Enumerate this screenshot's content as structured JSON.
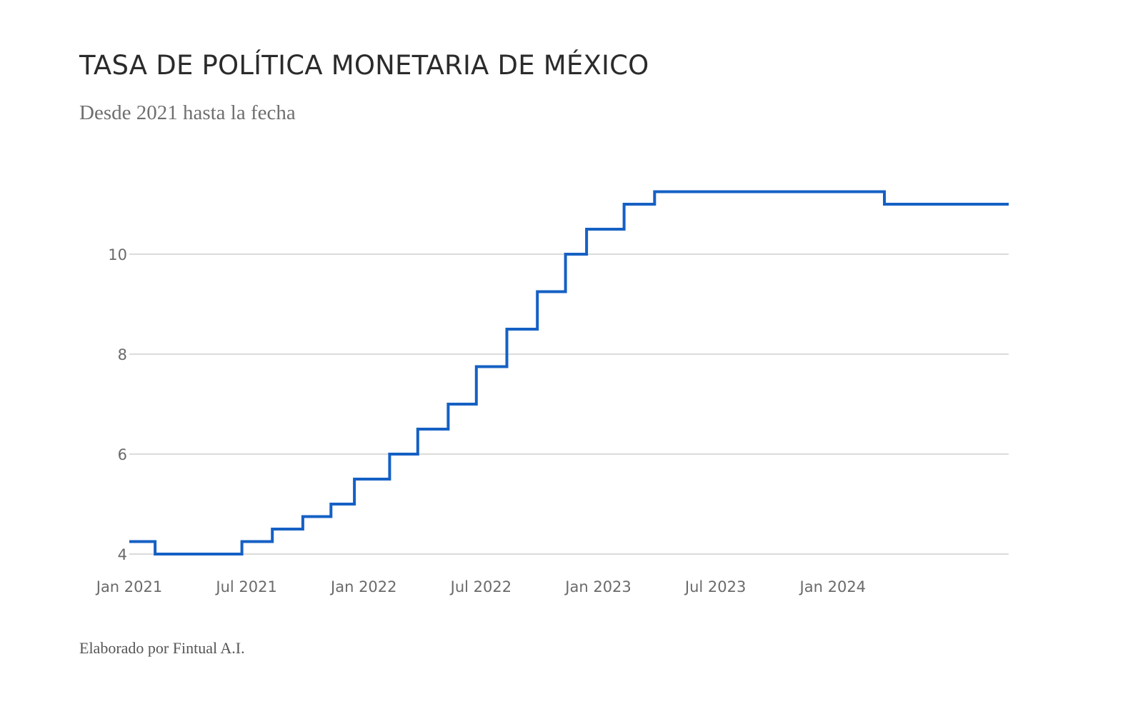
{
  "header": {
    "title": "TASA DE POLÍTICA MONETARIA DE MÉXICO",
    "subtitle": "Desde 2021 hasta la fecha"
  },
  "footer": {
    "credit": "Elaborado por Fintual A.I."
  },
  "colors": {
    "line": "#1560c4",
    "grid": "#cfcfcf",
    "tick": "#6a6a6a"
  },
  "chart_data": {
    "type": "line",
    "step": "after",
    "title": "TASA DE POLÍTICA MONETARIA DE MÉXICO",
    "subtitle": "Desde 2021 hasta la fecha",
    "xlabel": "",
    "ylabel": "",
    "xlim": [
      2021.0,
      2024.75
    ],
    "ylim": [
      4,
      11.5
    ],
    "x_ticks": [
      {
        "x": 2021.0,
        "label": "Jan 2021"
      },
      {
        "x": 2021.5,
        "label": "Jul 2021"
      },
      {
        "x": 2022.0,
        "label": "Jan 2022"
      },
      {
        "x": 2022.5,
        "label": "Jul 2022"
      },
      {
        "x": 2023.0,
        "label": "Jan 2023"
      },
      {
        "x": 2023.5,
        "label": "Jul 2023"
      },
      {
        "x": 2024.0,
        "label": "Jan 2024"
      }
    ],
    "y_ticks": [
      4,
      6,
      8,
      10
    ],
    "grid": true,
    "series": [
      {
        "name": "Tasa de política monetaria",
        "points": [
          {
            "x": 2021.0,
            "y": 4.25
          },
          {
            "x": 2021.11,
            "y": 4.0
          },
          {
            "x": 2021.48,
            "y": 4.25
          },
          {
            "x": 2021.61,
            "y": 4.5
          },
          {
            "x": 2021.74,
            "y": 4.75
          },
          {
            "x": 2021.86,
            "y": 5.0
          },
          {
            "x": 2021.96,
            "y": 5.5
          },
          {
            "x": 2022.11,
            "y": 6.0
          },
          {
            "x": 2022.23,
            "y": 6.5
          },
          {
            "x": 2022.36,
            "y": 7.0
          },
          {
            "x": 2022.48,
            "y": 7.75
          },
          {
            "x": 2022.61,
            "y": 8.5
          },
          {
            "x": 2022.74,
            "y": 9.25
          },
          {
            "x": 2022.86,
            "y": 10.0
          },
          {
            "x": 2022.95,
            "y": 10.5
          },
          {
            "x": 2023.11,
            "y": 11.0
          },
          {
            "x": 2023.24,
            "y": 11.25
          },
          {
            "x": 2024.22,
            "y": 11.0
          },
          {
            "x": 2024.75,
            "y": 11.0
          }
        ]
      }
    ]
  }
}
